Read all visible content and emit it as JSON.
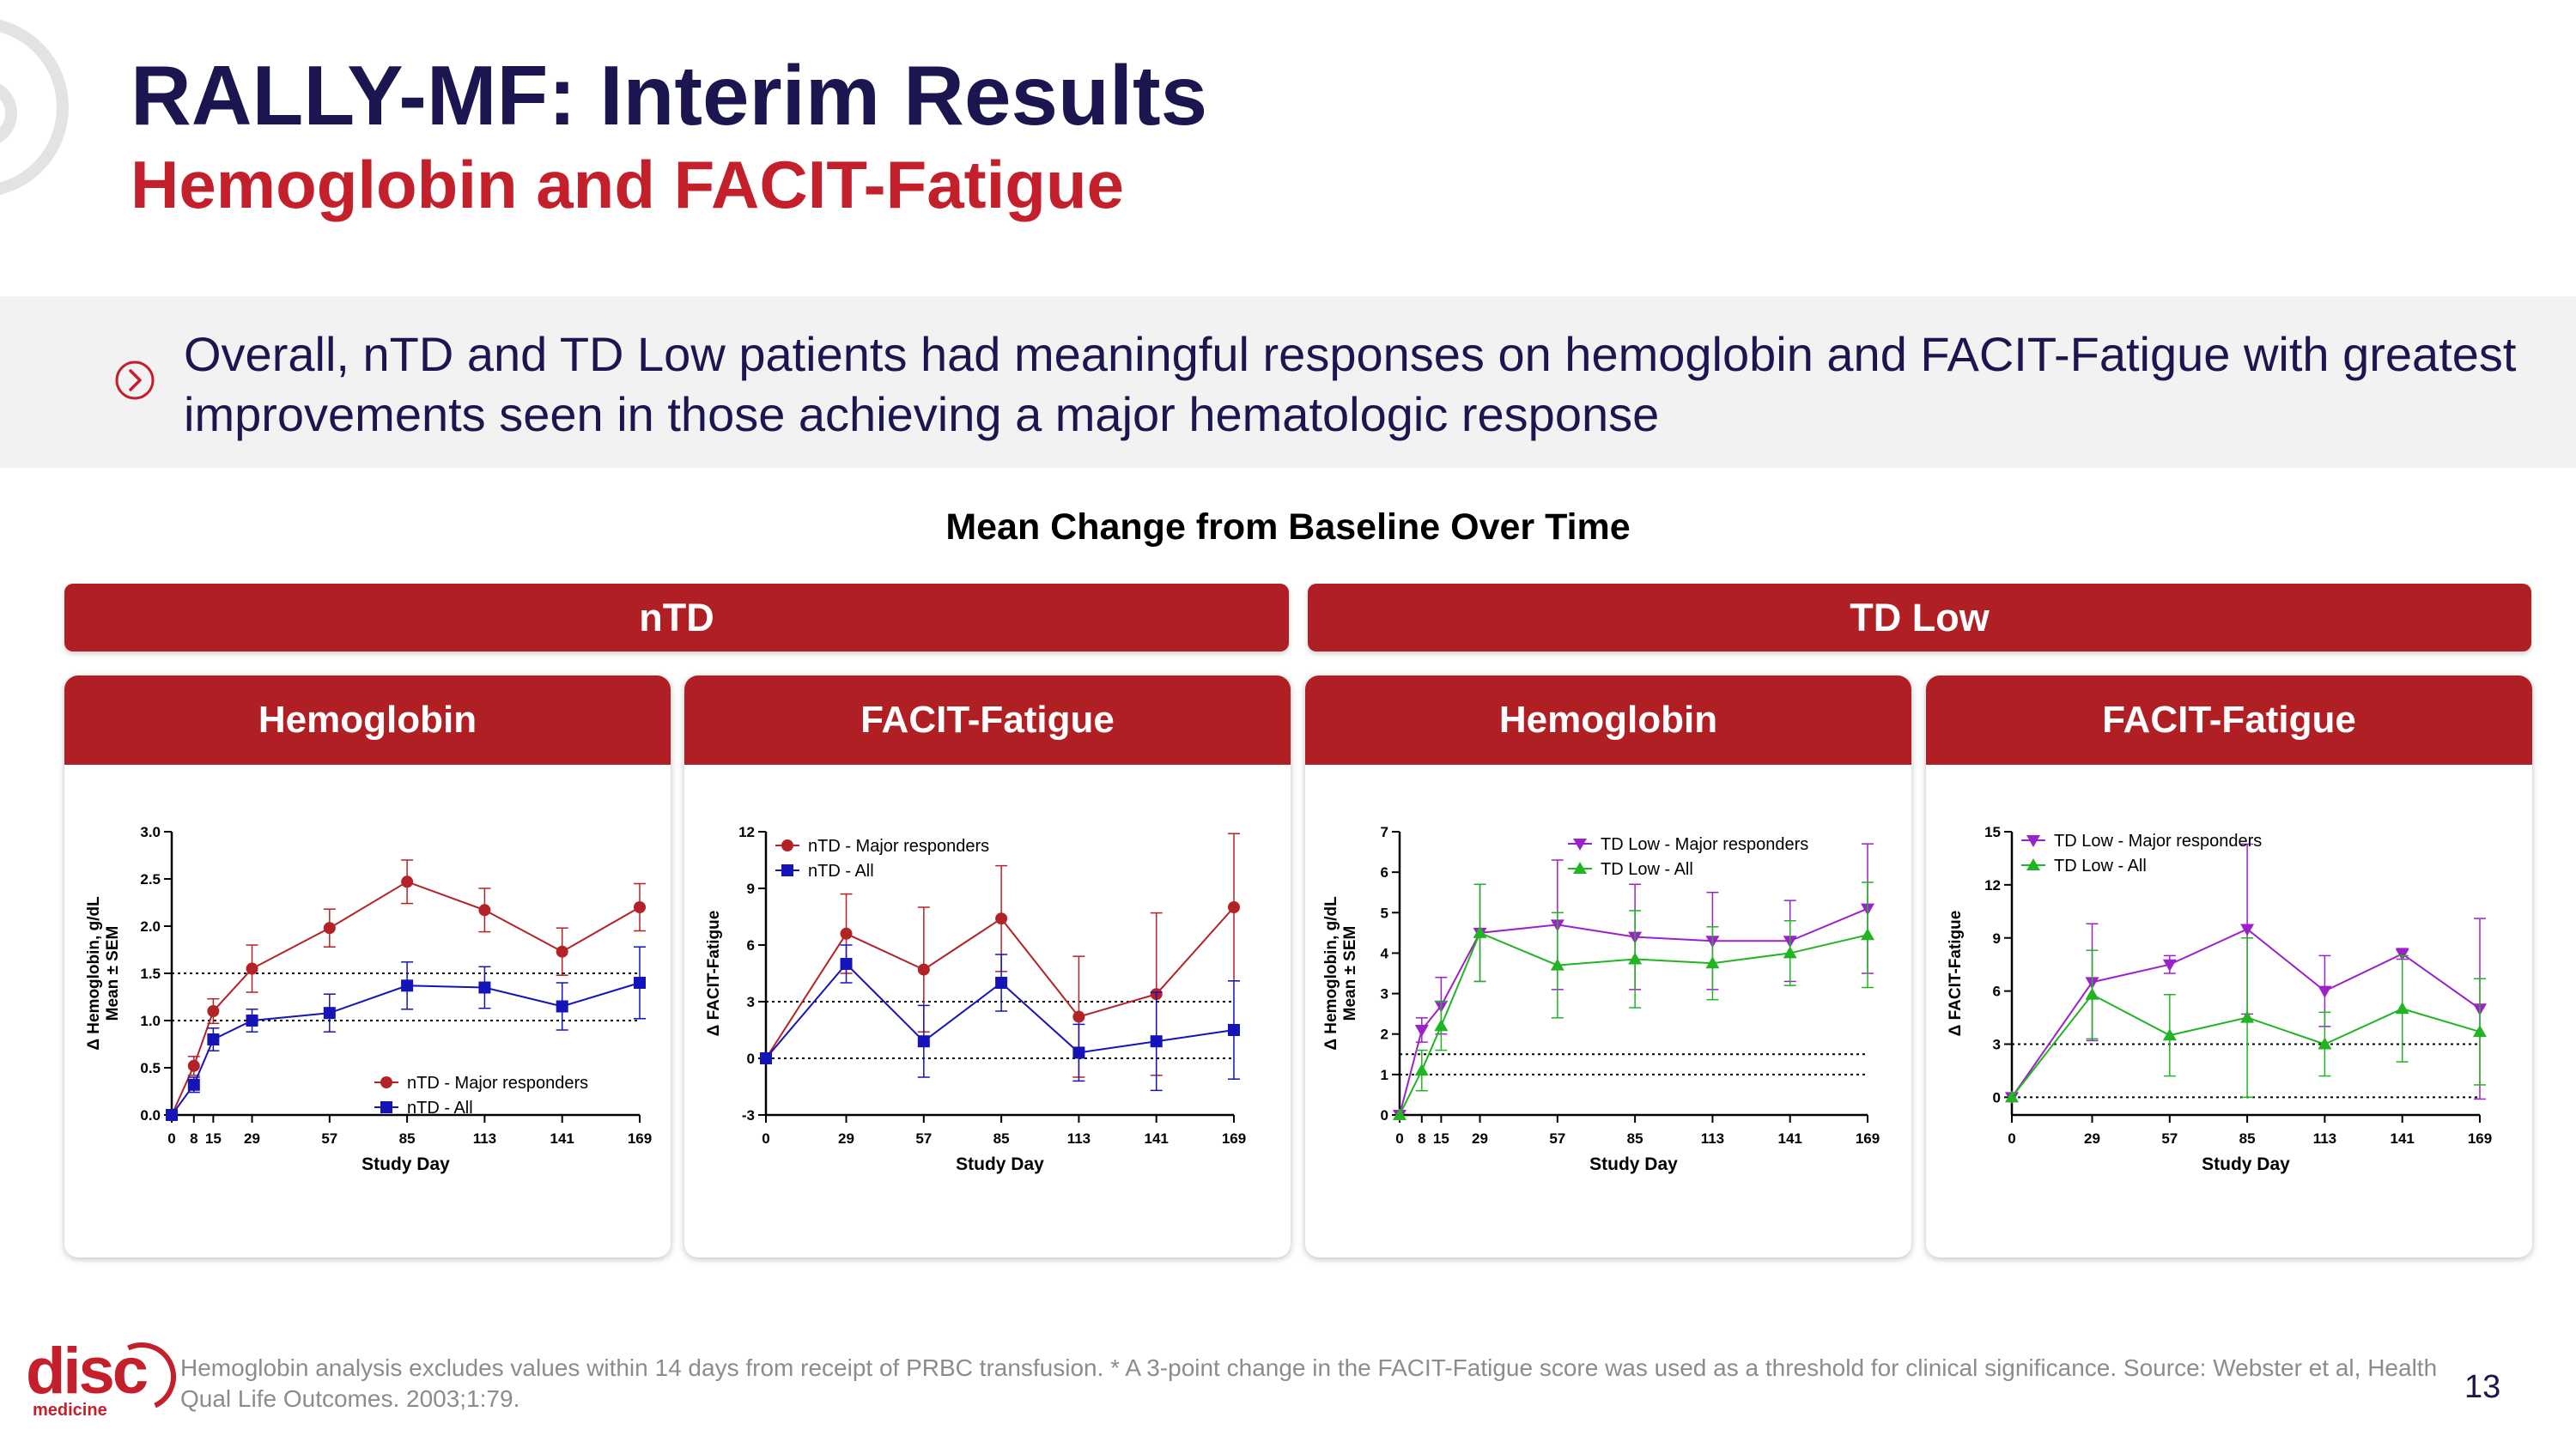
{
  "title": "RALLY-MF: Interim Results",
  "subtitle": "Hemoglobin and FACIT-Fatigue",
  "banner": {
    "icon": "chevron-circle-icon",
    "text": "Overall, nTD and TD Low patients had meaningful responses on hemoglobin and FACIT-Fatigue with greatest improvements seen in those achieving a major hematologic response"
  },
  "section_title": "Mean Change from Baseline Over Time",
  "groups": [
    {
      "label": "nTD"
    },
    {
      "label": "TD Low"
    }
  ],
  "panels": [
    {
      "header": "Hemoglobin"
    },
    {
      "header": "FACIT-Fatigue"
    },
    {
      "header": "Hemoglobin"
    },
    {
      "header": "FACIT-Fatigue"
    }
  ],
  "colors": {
    "navy": "#1c1650",
    "red": "#c4202c",
    "bar": "#b01f24",
    "series_red": "#b32226",
    "series_blue": "#1414b8",
    "series_purple": "#9b22c8",
    "series_green": "#22b422"
  },
  "chart_data": [
    {
      "type": "line",
      "group": "nTD",
      "title": "Hemoglobin",
      "xlabel": "Study Day",
      "ylabel": [
        "Δ Hemoglobin, g/dL",
        "Mean ± SEM"
      ],
      "xlim": [
        0,
        169
      ],
      "ylim": [
        0,
        3.0
      ],
      "xticks": [
        0,
        8,
        15,
        29,
        57,
        85,
        113,
        141,
        169
      ],
      "yticks": [
        0.0,
        0.5,
        1.0,
        1.5,
        2.0,
        2.5,
        3.0
      ],
      "ytick_labels": [
        "0.0",
        "0.5",
        "1.0",
        "1.5",
        "2.0",
        "2.5",
        "3.0"
      ],
      "reference_lines": [
        1.0,
        1.5
      ],
      "legend_position": "bottom-right",
      "series": [
        {
          "name": "nTD - Major responders",
          "color": "#b32226",
          "marker": "circle",
          "x": [
            0,
            8,
            15,
            29,
            57,
            85,
            113,
            141,
            169
          ],
          "y": [
            0,
            0.52,
            1.1,
            1.55,
            1.98,
            2.47,
            2.17,
            1.73,
            2.2
          ],
          "err": [
            0,
            0.1,
            0.13,
            0.25,
            0.2,
            0.23,
            0.23,
            0.25,
            0.25
          ]
        },
        {
          "name": "nTD - All",
          "color": "#1414b8",
          "marker": "square",
          "x": [
            0,
            8,
            15,
            29,
            57,
            85,
            113,
            141,
            169
          ],
          "y": [
            0,
            0.32,
            0.8,
            1.0,
            1.08,
            1.37,
            1.35,
            1.15,
            1.4
          ],
          "err": [
            0,
            0.08,
            0.12,
            0.12,
            0.2,
            0.25,
            0.22,
            0.25,
            0.38
          ]
        }
      ]
    },
    {
      "type": "line",
      "group": "nTD",
      "title": "FACIT-Fatigue",
      "xlabel": "Study Day",
      "ylabel": [
        "Δ FACIT-Fatigue"
      ],
      "xlim": [
        0,
        169
      ],
      "ylim": [
        -3,
        12
      ],
      "xticks": [
        0,
        29,
        57,
        85,
        113,
        141,
        169
      ],
      "yticks": [
        -3,
        0,
        3,
        6,
        9,
        12
      ],
      "ytick_labels": [
        "-3",
        "0",
        "3",
        "6",
        "9",
        "12"
      ],
      "reference_lines": [
        0,
        3
      ],
      "legend_position": "top-left",
      "series": [
        {
          "name": "nTD - Major responders",
          "color": "#b32226",
          "marker": "circle",
          "x": [
            0,
            29,
            57,
            85,
            113,
            141,
            169
          ],
          "y": [
            0,
            6.6,
            4.7,
            7.4,
            2.2,
            3.4,
            8.0
          ],
          "err": [
            0,
            2.1,
            3.3,
            2.8,
            3.2,
            4.3,
            3.9
          ]
        },
        {
          "name": "nTD - All",
          "color": "#1414b8",
          "marker": "square",
          "x": [
            0,
            29,
            57,
            85,
            113,
            141,
            169
          ],
          "y": [
            0,
            5.0,
            0.9,
            4.0,
            0.3,
            0.9,
            1.5
          ],
          "err": [
            0,
            1.0,
            1.9,
            1.5,
            1.5,
            2.6,
            2.6
          ]
        }
      ]
    },
    {
      "type": "line",
      "group": "TD Low",
      "title": "Hemoglobin",
      "xlabel": "Study Day",
      "ylabel": [
        "Δ Hemoglobin, g/dL",
        "Mean ± SEM"
      ],
      "xlim": [
        0,
        169
      ],
      "ylim": [
        0,
        7
      ],
      "xticks": [
        0,
        8,
        15,
        29,
        57,
        85,
        113,
        141,
        169
      ],
      "yticks": [
        0,
        1,
        2,
        3,
        4,
        5,
        6,
        7
      ],
      "ytick_labels": [
        "0",
        "1",
        "2",
        "3",
        "4",
        "5",
        "6",
        "7"
      ],
      "reference_lines": [
        1.0,
        1.5
      ],
      "legend_position": "top-right",
      "series": [
        {
          "name": "TD Low - Major responders",
          "color": "#9b22c8",
          "marker": "triangle-down",
          "x": [
            0,
            8,
            15,
            29,
            57,
            85,
            113,
            141,
            169
          ],
          "y": [
            0,
            2.1,
            2.7,
            4.5,
            4.7,
            4.4,
            4.3,
            4.3,
            5.1
          ],
          "err": [
            0,
            0.3,
            0.7,
            1.2,
            1.6,
            1.3,
            1.2,
            1.0,
            1.6
          ]
        },
        {
          "name": "TD Low - All",
          "color": "#22b422",
          "marker": "triangle-up",
          "x": [
            0,
            8,
            15,
            29,
            57,
            85,
            113,
            141,
            169
          ],
          "y": [
            0,
            1.1,
            2.2,
            4.5,
            3.7,
            3.85,
            3.75,
            4.0,
            4.45
          ],
          "err": [
            0,
            0.5,
            0.6,
            1.2,
            1.3,
            1.2,
            0.9,
            0.8,
            1.3
          ]
        }
      ]
    },
    {
      "type": "line",
      "group": "TD Low",
      "title": "FACIT-Fatigue",
      "xlabel": "Study Day",
      "ylabel": [
        "Δ FACIT-Fatigue"
      ],
      "xlim": [
        0,
        169
      ],
      "ylim": [
        -1,
        15
      ],
      "xticks": [
        0,
        29,
        57,
        85,
        113,
        141,
        169
      ],
      "yticks": [
        0,
        3,
        6,
        9,
        12,
        15
      ],
      "ytick_labels": [
        "0",
        "3",
        "6",
        "9",
        "12",
        "15"
      ],
      "reference_lines": [
        0,
        3
      ],
      "legend_position": "top-left",
      "series": [
        {
          "name": "TD Low - Major responders",
          "color": "#9b22c8",
          "marker": "triangle-down",
          "x": [
            0,
            29,
            57,
            85,
            113,
            141,
            169
          ],
          "y": [
            0,
            6.5,
            7.5,
            9.5,
            6.0,
            8.1,
            5.0
          ],
          "err": [
            0,
            3.3,
            0.5,
            4.8,
            2.0,
            0.3,
            5.1
          ]
        },
        {
          "name": "TD Low - All",
          "color": "#22b422",
          "marker": "triangle-up",
          "x": [
            0,
            29,
            57,
            85,
            113,
            141,
            169
          ],
          "y": [
            0,
            5.8,
            3.5,
            4.5,
            3.0,
            5.0,
            3.7
          ],
          "err": [
            0,
            2.5,
            2.3,
            4.5,
            1.8,
            3.0,
            3.0
          ]
        }
      ]
    }
  ],
  "logo": {
    "main": "disc",
    "sub": "medicine"
  },
  "footnote": "Hemoglobin analysis excludes values within 14 days from receipt of PRBC transfusion. * A 3-point change in the FACIT-Fatigue score was used as a threshold for clinical significance. Source: Webster et al, Health Qual Life Outcomes. 2003;1:79.",
  "page_number": "13"
}
